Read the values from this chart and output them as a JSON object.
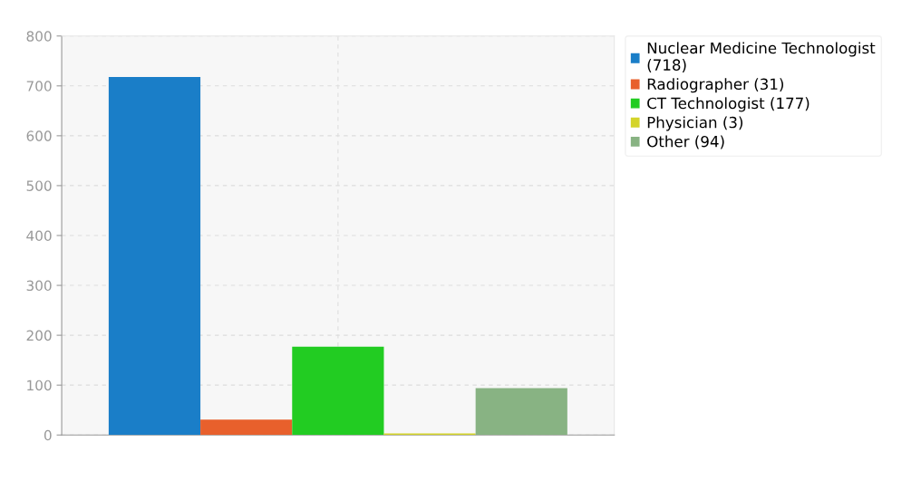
{
  "chart_data": {
    "type": "bar",
    "categories": [
      null
    ],
    "series": [
      {
        "name": "Nuclear Medicine Technologist (718)",
        "color": "#1a7ec8",
        "values": [
          718
        ]
      },
      {
        "name": "Radiographer (31)",
        "color": "#e8602c",
        "values": [
          31
        ]
      },
      {
        "name": "CT Technologist (177)",
        "color": "#22cc22",
        "values": [
          177
        ]
      },
      {
        "name": "Physician (3)",
        "color": "#d4d42a",
        "values": [
          3
        ]
      },
      {
        "name": "Other (94)",
        "color": "#88b383",
        "values": [
          94
        ]
      }
    ],
    "ylim": [
      0,
      800
    ],
    "yticks": [
      0,
      100,
      200,
      300,
      400,
      500,
      600,
      700,
      800
    ],
    "grid": true,
    "legend": "top right"
  }
}
